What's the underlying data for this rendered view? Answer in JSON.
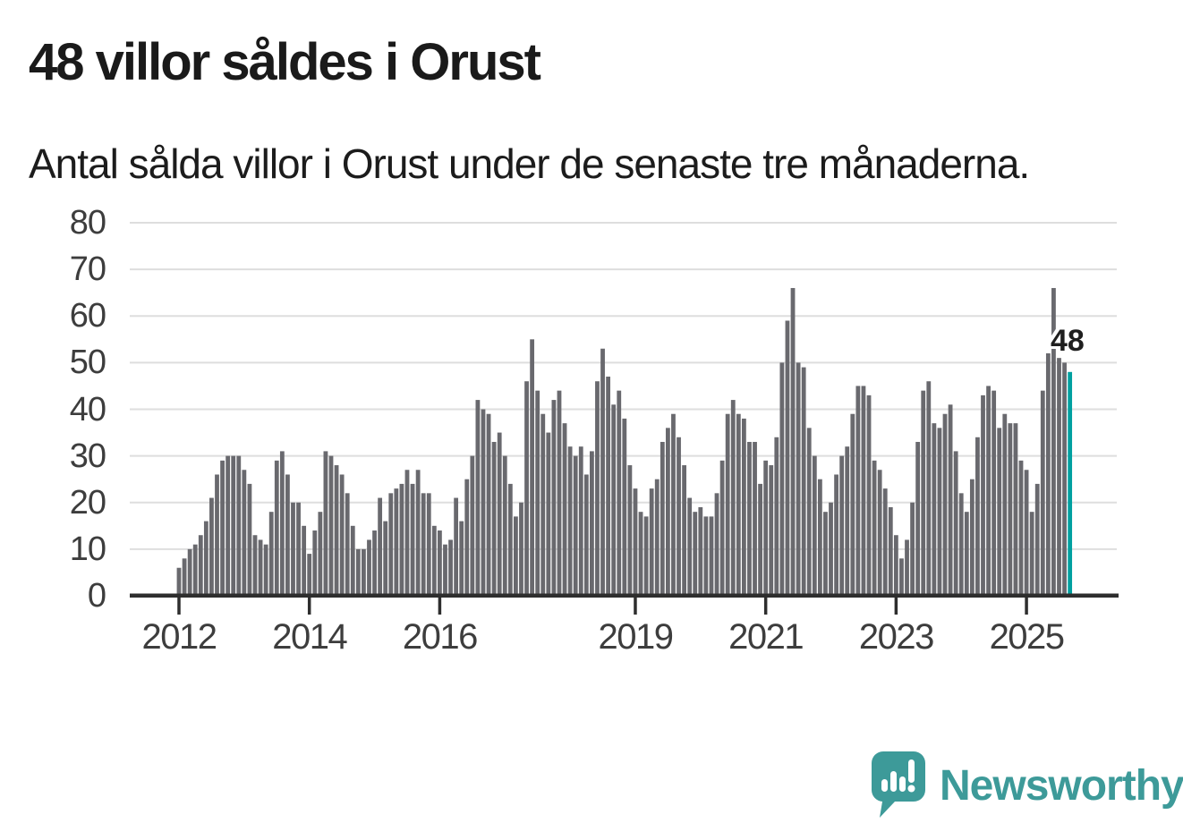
{
  "title": "48 villor såldes i Orust",
  "subtitle": "Antal sålda villor i Orust under de senaste tre månaderna.",
  "annotation": {
    "label": "48"
  },
  "logo": {
    "text": "Newsworthy"
  },
  "colors": {
    "bar": "#69696e",
    "highlight": "#00a0a0",
    "grid": "#dedede",
    "axis": "#2e2e2e",
    "title_text": "#1a1a1a",
    "axis_label": "#3d3d3d",
    "logo_teal": "#3d9a99"
  },
  "chart_data": {
    "type": "bar",
    "title": "48 villor såldes i Orust",
    "subtitle": "Antal sålda villor i Orust under de senaste tre månaderna.",
    "x_start_month": "2012-01",
    "x_end_month": "2025-09",
    "x_tick_labels": [
      "2012",
      "2014",
      "2016",
      "2019",
      "2021",
      "2023",
      "2025"
    ],
    "x_tick_months": [
      0,
      24,
      48,
      84,
      108,
      132,
      156
    ],
    "y_ticks": [
      0,
      10,
      20,
      30,
      40,
      50,
      60,
      70,
      80
    ],
    "ylim": [
      0,
      80
    ],
    "grid": true,
    "legend": "none",
    "values": [
      6,
      8,
      10,
      11,
      13,
      16,
      21,
      26,
      29,
      30,
      30,
      30,
      27,
      24,
      13,
      12,
      11,
      18,
      29,
      31,
      26,
      20,
      20,
      15,
      9,
      14,
      18,
      31,
      30,
      28,
      26,
      22,
      15,
      10,
      10,
      12,
      14,
      21,
      16,
      22,
      23,
      24,
      27,
      24,
      27,
      22,
      22,
      15,
      14,
      11,
      12,
      21,
      16,
      25,
      30,
      42,
      40,
      39,
      33,
      35,
      30,
      24,
      17,
      20,
      46,
      55,
      44,
      39,
      35,
      42,
      44,
      37,
      32,
      30,
      32,
      26,
      31,
      46,
      53,
      47,
      41,
      44,
      38,
      28,
      23,
      18,
      17,
      23,
      25,
      33,
      36,
      39,
      34,
      28,
      21,
      18,
      19,
      17,
      17,
      22,
      29,
      39,
      42,
      39,
      38,
      33,
      33,
      24,
      29,
      28,
      34,
      50,
      59,
      66,
      50,
      49,
      36,
      30,
      25,
      18,
      20,
      26,
      30,
      32,
      39,
      45,
      45,
      43,
      29,
      27,
      23,
      19,
      13,
      8,
      12,
      20,
      33,
      44,
      46,
      37,
      36,
      39,
      41,
      31,
      22,
      18,
      25,
      34,
      43,
      45,
      44,
      36,
      39,
      37,
      37,
      29,
      27,
      18,
      24,
      44,
      52,
      66,
      51,
      50,
      48
    ],
    "highlight_last": true,
    "highlight_value": 48,
    "annotation_label": "48"
  }
}
